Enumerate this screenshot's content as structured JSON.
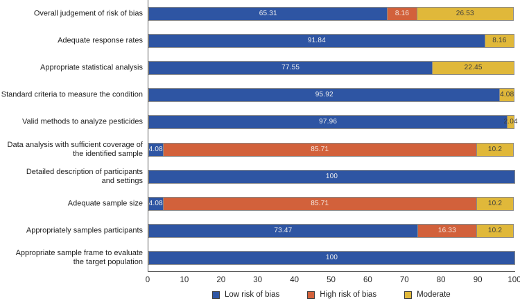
{
  "chart_data": {
    "type": "bar",
    "orientation": "horizontal",
    "stacked": true,
    "title": "",
    "xlabel": "",
    "ylabel": "",
    "xlim": [
      0,
      100
    ],
    "x_ticks": [
      0,
      10,
      20,
      30,
      40,
      50,
      60,
      70,
      80,
      90,
      100
    ],
    "grid": false,
    "legend_position": "bottom",
    "categories": [
      "Overall judgement of risk of bias",
      "Adequate response rates",
      "Appropriate statistical analysis",
      "Standard criteria to measure the condition",
      "Valid methods to analyze pesticides",
      "Data analysis with sufficient coverage of\nthe identified sample",
      "Detailed description of participants\nand settings",
      "Adequate sample size",
      "Appropriately samples participants",
      "Appropriate sample frame to evaluate\nthe target population"
    ],
    "series": [
      {
        "name": "Low risk of bias",
        "color": "#2E55A3",
        "label_color": "#f0f0f0",
        "values": [
          65.31,
          91.84,
          77.55,
          95.92,
          97.96,
          4.08,
          100,
          4.08,
          73.47,
          100
        ]
      },
      {
        "name": "High risk of bias",
        "color": "#D2613B",
        "label_color": "#f5e9e2",
        "values": [
          8.16,
          0,
          0,
          0,
          0,
          85.71,
          0,
          85.71,
          16.33,
          0
        ]
      },
      {
        "name": "Moderate",
        "color": "#E0B83A",
        "label_color": "#3d3d3d",
        "values": [
          26.53,
          8.16,
          22.45,
          4.08,
          2.04,
          10.2,
          0,
          10.2,
          10.2,
          0
        ]
      }
    ]
  }
}
